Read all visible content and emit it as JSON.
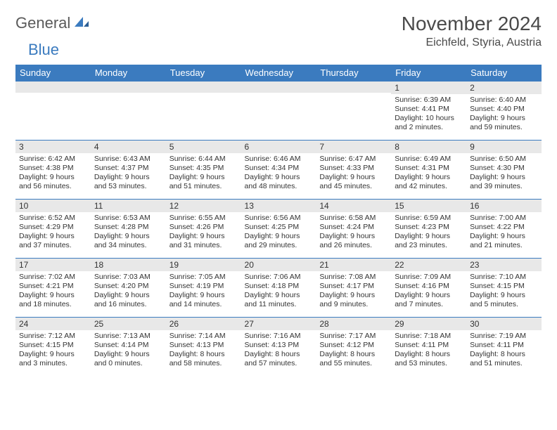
{
  "logo": {
    "part1": "General",
    "part2": "Blue"
  },
  "title": "November 2024",
  "location": "Eichfeld, Styria, Austria",
  "colors": {
    "header_bg": "#3b7bbf",
    "header_text": "#ffffff",
    "daynum_bg": "#e8e8e8",
    "cell_border": "#3b7bbf",
    "text": "#333333",
    "logo_gray": "#5a5a5a",
    "logo_blue": "#3b7bbf"
  },
  "day_headers": [
    "Sunday",
    "Monday",
    "Tuesday",
    "Wednesday",
    "Thursday",
    "Friday",
    "Saturday"
  ],
  "weeks": [
    [
      {
        "n": "",
        "sr": "",
        "ss": "",
        "dl": ""
      },
      {
        "n": "",
        "sr": "",
        "ss": "",
        "dl": ""
      },
      {
        "n": "",
        "sr": "",
        "ss": "",
        "dl": ""
      },
      {
        "n": "",
        "sr": "",
        "ss": "",
        "dl": ""
      },
      {
        "n": "",
        "sr": "",
        "ss": "",
        "dl": ""
      },
      {
        "n": "1",
        "sr": "Sunrise: 6:39 AM",
        "ss": "Sunset: 4:41 PM",
        "dl": "Daylight: 10 hours and 2 minutes."
      },
      {
        "n": "2",
        "sr": "Sunrise: 6:40 AM",
        "ss": "Sunset: 4:40 PM",
        "dl": "Daylight: 9 hours and 59 minutes."
      }
    ],
    [
      {
        "n": "3",
        "sr": "Sunrise: 6:42 AM",
        "ss": "Sunset: 4:38 PM",
        "dl": "Daylight: 9 hours and 56 minutes."
      },
      {
        "n": "4",
        "sr": "Sunrise: 6:43 AM",
        "ss": "Sunset: 4:37 PM",
        "dl": "Daylight: 9 hours and 53 minutes."
      },
      {
        "n": "5",
        "sr": "Sunrise: 6:44 AM",
        "ss": "Sunset: 4:35 PM",
        "dl": "Daylight: 9 hours and 51 minutes."
      },
      {
        "n": "6",
        "sr": "Sunrise: 6:46 AM",
        "ss": "Sunset: 4:34 PM",
        "dl": "Daylight: 9 hours and 48 minutes."
      },
      {
        "n": "7",
        "sr": "Sunrise: 6:47 AM",
        "ss": "Sunset: 4:33 PM",
        "dl": "Daylight: 9 hours and 45 minutes."
      },
      {
        "n": "8",
        "sr": "Sunrise: 6:49 AM",
        "ss": "Sunset: 4:31 PM",
        "dl": "Daylight: 9 hours and 42 minutes."
      },
      {
        "n": "9",
        "sr": "Sunrise: 6:50 AM",
        "ss": "Sunset: 4:30 PM",
        "dl": "Daylight: 9 hours and 39 minutes."
      }
    ],
    [
      {
        "n": "10",
        "sr": "Sunrise: 6:52 AM",
        "ss": "Sunset: 4:29 PM",
        "dl": "Daylight: 9 hours and 37 minutes."
      },
      {
        "n": "11",
        "sr": "Sunrise: 6:53 AM",
        "ss": "Sunset: 4:28 PM",
        "dl": "Daylight: 9 hours and 34 minutes."
      },
      {
        "n": "12",
        "sr": "Sunrise: 6:55 AM",
        "ss": "Sunset: 4:26 PM",
        "dl": "Daylight: 9 hours and 31 minutes."
      },
      {
        "n": "13",
        "sr": "Sunrise: 6:56 AM",
        "ss": "Sunset: 4:25 PM",
        "dl": "Daylight: 9 hours and 29 minutes."
      },
      {
        "n": "14",
        "sr": "Sunrise: 6:58 AM",
        "ss": "Sunset: 4:24 PM",
        "dl": "Daylight: 9 hours and 26 minutes."
      },
      {
        "n": "15",
        "sr": "Sunrise: 6:59 AM",
        "ss": "Sunset: 4:23 PM",
        "dl": "Daylight: 9 hours and 23 minutes."
      },
      {
        "n": "16",
        "sr": "Sunrise: 7:00 AM",
        "ss": "Sunset: 4:22 PM",
        "dl": "Daylight: 9 hours and 21 minutes."
      }
    ],
    [
      {
        "n": "17",
        "sr": "Sunrise: 7:02 AM",
        "ss": "Sunset: 4:21 PM",
        "dl": "Daylight: 9 hours and 18 minutes."
      },
      {
        "n": "18",
        "sr": "Sunrise: 7:03 AM",
        "ss": "Sunset: 4:20 PM",
        "dl": "Daylight: 9 hours and 16 minutes."
      },
      {
        "n": "19",
        "sr": "Sunrise: 7:05 AM",
        "ss": "Sunset: 4:19 PM",
        "dl": "Daylight: 9 hours and 14 minutes."
      },
      {
        "n": "20",
        "sr": "Sunrise: 7:06 AM",
        "ss": "Sunset: 4:18 PM",
        "dl": "Daylight: 9 hours and 11 minutes."
      },
      {
        "n": "21",
        "sr": "Sunrise: 7:08 AM",
        "ss": "Sunset: 4:17 PM",
        "dl": "Daylight: 9 hours and 9 minutes."
      },
      {
        "n": "22",
        "sr": "Sunrise: 7:09 AM",
        "ss": "Sunset: 4:16 PM",
        "dl": "Daylight: 9 hours and 7 minutes."
      },
      {
        "n": "23",
        "sr": "Sunrise: 7:10 AM",
        "ss": "Sunset: 4:15 PM",
        "dl": "Daylight: 9 hours and 5 minutes."
      }
    ],
    [
      {
        "n": "24",
        "sr": "Sunrise: 7:12 AM",
        "ss": "Sunset: 4:15 PM",
        "dl": "Daylight: 9 hours and 3 minutes."
      },
      {
        "n": "25",
        "sr": "Sunrise: 7:13 AM",
        "ss": "Sunset: 4:14 PM",
        "dl": "Daylight: 9 hours and 0 minutes."
      },
      {
        "n": "26",
        "sr": "Sunrise: 7:14 AM",
        "ss": "Sunset: 4:13 PM",
        "dl": "Daylight: 8 hours and 58 minutes."
      },
      {
        "n": "27",
        "sr": "Sunrise: 7:16 AM",
        "ss": "Sunset: 4:13 PM",
        "dl": "Daylight: 8 hours and 57 minutes."
      },
      {
        "n": "28",
        "sr": "Sunrise: 7:17 AM",
        "ss": "Sunset: 4:12 PM",
        "dl": "Daylight: 8 hours and 55 minutes."
      },
      {
        "n": "29",
        "sr": "Sunrise: 7:18 AM",
        "ss": "Sunset: 4:11 PM",
        "dl": "Daylight: 8 hours and 53 minutes."
      },
      {
        "n": "30",
        "sr": "Sunrise: 7:19 AM",
        "ss": "Sunset: 4:11 PM",
        "dl": "Daylight: 8 hours and 51 minutes."
      }
    ]
  ]
}
